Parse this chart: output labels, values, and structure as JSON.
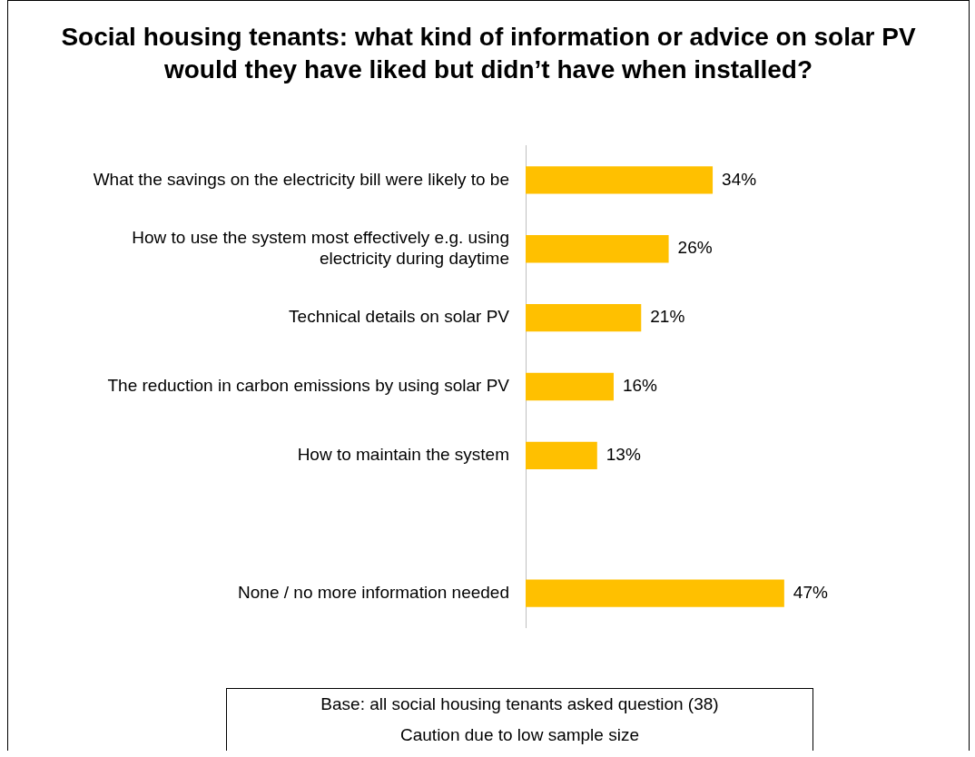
{
  "chart_data": {
    "type": "bar",
    "orientation": "horizontal",
    "title": "Social housing tenants: what kind of information or advice on solar PV would they have liked but didn’t have when installed?",
    "categories": [
      "What the savings on the electricity bill were likely to be",
      "How to use the system most effectively e.g. using electricity during daytime",
      "Technical details on solar PV",
      "The reduction in carbon emissions by using solar PV",
      "How to maintain the system",
      null,
      "None / no more information needed"
    ],
    "values": [
      34,
      26,
      21,
      16,
      13,
      null,
      47
    ],
    "value_labels": [
      "34%",
      "26%",
      "21%",
      "16%",
      "13%",
      null,
      "47%"
    ],
    "color": "#ffc000",
    "grid": false,
    "legend": false,
    "annotations": [
      "Base: all social housing tenants asked question (38)",
      "Caution due to low sample size"
    ]
  }
}
